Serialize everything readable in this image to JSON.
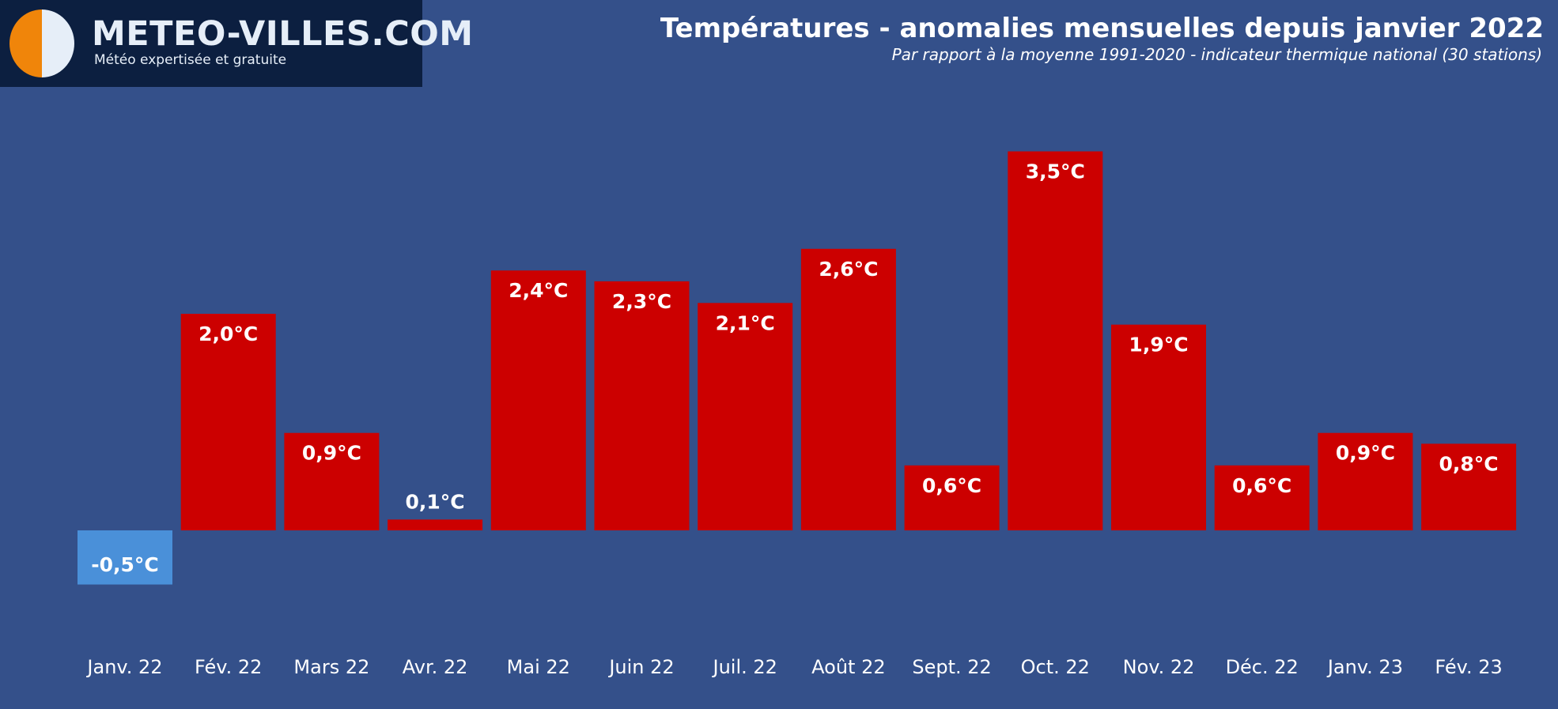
{
  "brand": {
    "name": "METEO-VILLES.COM",
    "tagline": "Météo expertisée et gratuite"
  },
  "colors": {
    "background": "#34508a",
    "positive": "#cc0000",
    "negative": "#4a90d9",
    "label": "#ffffff",
    "logo_bg": "#0c1f40"
  },
  "chart_data": {
    "type": "bar",
    "title": "Températures - anomalies mensuelles depuis janvier 2022",
    "subtitle": "Par rapport à la moyenne 1991-2020 - indicateur thermique national (30 stations)",
    "xlabel": "",
    "ylabel": "",
    "unit": "°C",
    "ylim": [
      -0.85,
      3.7
    ],
    "grid": false,
    "legend": "none",
    "categories": [
      "Janv. 22",
      "Fév. 22",
      "Mars 22",
      "Avr. 22",
      "Mai 22",
      "Juin 22",
      "Juil. 22",
      "Août 22",
      "Sept. 22",
      "Oct. 22",
      "Nov. 22",
      "Déc. 22",
      "Janv. 23",
      "Fév. 23"
    ],
    "values": [
      -0.5,
      2.0,
      0.9,
      0.1,
      2.4,
      2.3,
      2.1,
      2.6,
      0.6,
      3.5,
      1.9,
      0.6,
      0.9,
      0.8
    ],
    "data_labels": [
      "-0,5°C",
      "2,0°C",
      "0,9°C",
      "0,1°C",
      "2,4°C",
      "2,3°C",
      "2,1°C",
      "2,6°C",
      "0,6°C",
      "3,5°C",
      "1,9°C",
      "0,6°C",
      "0,9°C",
      "0,8°C"
    ]
  }
}
